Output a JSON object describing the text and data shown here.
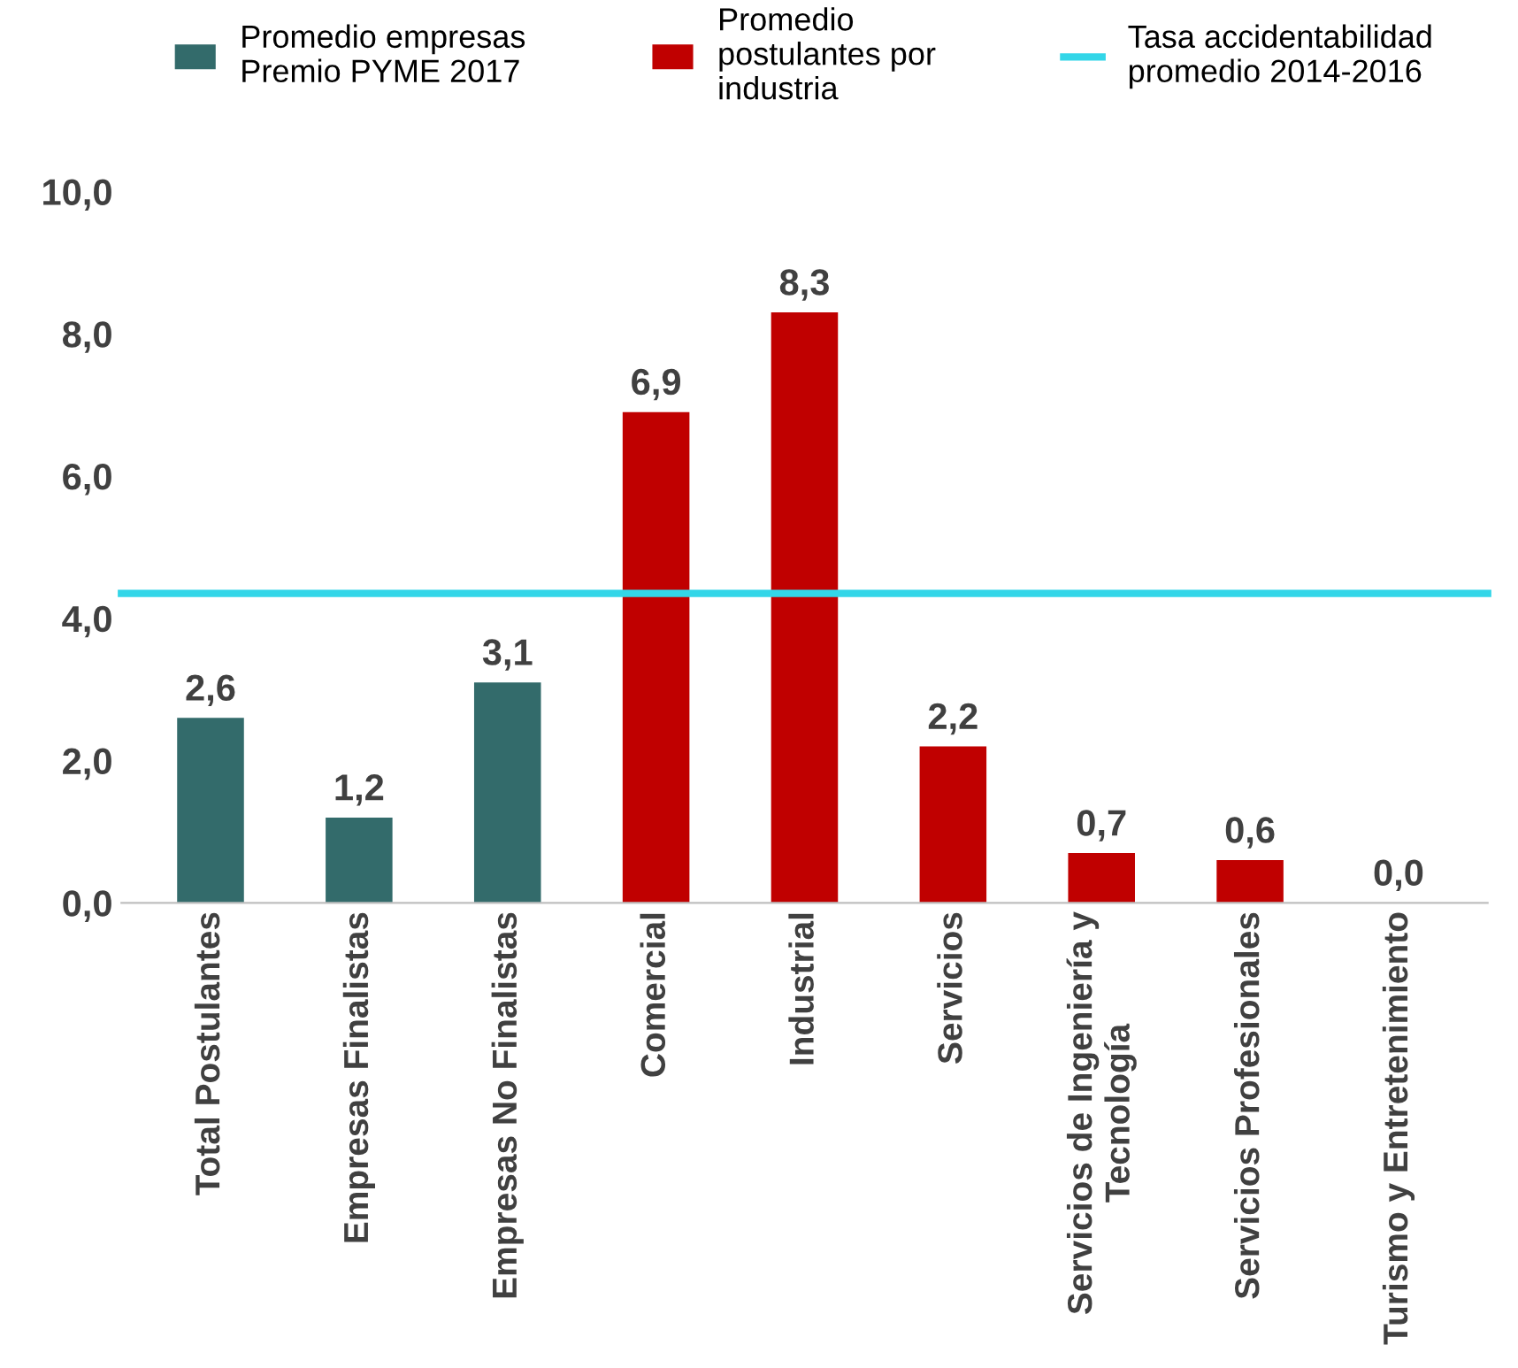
{
  "chart_data": {
    "type": "bar",
    "categories": [
      "Total Postulantes",
      "Empresas Finalistas",
      "Empresas No Finalistas",
      "Comercial",
      "Industrial",
      "Servicios",
      "Servicios de Ingeniería y\nTecnología",
      "Servicios Profesionales",
      "Turismo y Entretenimiento"
    ],
    "series": [
      {
        "name": "Promedio empresas\nPremio PYME 2017",
        "color": "#336b6b",
        "values": [
          2.6,
          1.2,
          3.1,
          null,
          null,
          null,
          null,
          null,
          null
        ],
        "value_labels": [
          "2,6",
          "1,2",
          "3,1",
          null,
          null,
          null,
          null,
          null,
          null
        ]
      },
      {
        "name": "Promedio\npostulantes por\nindustria",
        "color": "#c00000",
        "values": [
          null,
          null,
          null,
          6.9,
          8.3,
          2.2,
          0.7,
          0.6,
          0.0
        ],
        "value_labels": [
          null,
          null,
          null,
          "6,9",
          "8,3",
          "2,2",
          "0,7",
          "0,6",
          "0,0"
        ]
      }
    ],
    "ref_lines": [
      {
        "axis": "y",
        "value": 4.35,
        "label": "Tasa accidentabilidad\npromedio 2014-2016",
        "color": "#33d6e8"
      }
    ],
    "ylim": [
      0,
      10
    ],
    "yticks": [
      {
        "value": 0,
        "label": "0,0"
      },
      {
        "value": 2,
        "label": "2,0"
      },
      {
        "value": 4,
        "label": "4,0"
      },
      {
        "value": 6,
        "label": "6,0"
      },
      {
        "value": 8,
        "label": "8,0"
      },
      {
        "value": 10,
        "label": "10,0"
      }
    ],
    "grid": false,
    "legend": "top"
  }
}
